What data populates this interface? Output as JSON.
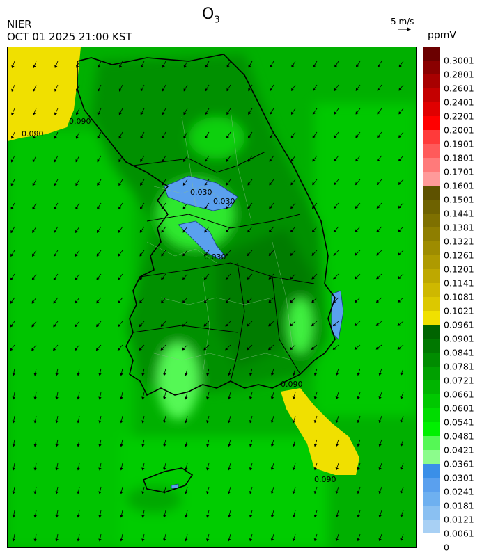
{
  "header": {
    "title_main": "O",
    "title_sub": "3",
    "agency": "NIER",
    "datetime": "OCT 01 2025 21:00 KST",
    "vector_label": "5 m/s",
    "unit": "ppmV"
  },
  "map": {
    "contour_labels": [
      "0.090",
      "0.090",
      "0.030",
      "0.030",
      "0.030",
      "0.090",
      "0.090"
    ]
  },
  "colorbar": {
    "labels": [
      "0.3001",
      "0.2801",
      "0.2601",
      "0.2401",
      "0.2201",
      "0.2001",
      "0.1901",
      "0.1801",
      "0.1701",
      "0.1601",
      "0.1501",
      "0.1441",
      "0.1381",
      "0.1321",
      "0.1261",
      "0.1201",
      "0.1141",
      "0.1081",
      "0.1021",
      "0.0961",
      "0.0901",
      "0.0841",
      "0.0781",
      "0.0721",
      "0.0661",
      "0.0601",
      "0.0541",
      "0.0481",
      "0.0421",
      "0.0361",
      "0.0301",
      "0.0241",
      "0.0181",
      "0.0121",
      "0.0061",
      "0"
    ],
    "colors": [
      "#6b0000",
      "#8a0000",
      "#a80000",
      "#c40000",
      "#e00000",
      "#ff0000",
      "#ff3a3a",
      "#ff5a5a",
      "#ff7a7a",
      "#ff9a9a",
      "#5e5200",
      "#6e6200",
      "#7e7000",
      "#8e7e00",
      "#9e8c00",
      "#ae9a00",
      "#bea800",
      "#ceb800",
      "#dcc800",
      "#f0e000",
      "#006400",
      "#007800",
      "#008c00",
      "#00a000",
      "#00b400",
      "#00c800",
      "#00dc00",
      "#00f000",
      "#55f855",
      "#8cfc8c",
      "#3a8fe8",
      "#5aa0ee",
      "#6eb0f0",
      "#8ac0f2",
      "#a8d0f4"
    ]
  }
}
